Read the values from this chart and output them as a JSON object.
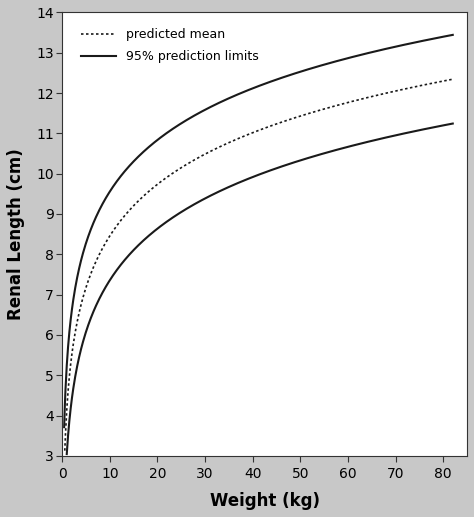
{
  "title": "",
  "xlabel": "Weight (kg)",
  "ylabel": "Renal Length (cm)",
  "xlim": [
    0,
    85
  ],
  "ylim": [
    3,
    14
  ],
  "xticks": [
    0,
    10,
    20,
    30,
    40,
    50,
    60,
    70,
    80
  ],
  "yticks": [
    3,
    4,
    5,
    6,
    7,
    8,
    9,
    10,
    11,
    12,
    13,
    14
  ],
  "bg_color": "#c8c8c8",
  "plot_bg_color": "#ffffff",
  "line_color": "#1a1a1a",
  "mean_a": 2.18,
  "mean_b": 2.15,
  "upper_a": 3.28,
  "upper_b": 2.15,
  "lower_a": 1.08,
  "lower_b": 2.15,
  "lower_x_start": 0.3,
  "legend_dotted_label": "predicted mean",
  "legend_solid_label": "95% prediction limits",
  "figsize": [
    4.74,
    5.17
  ],
  "dpi": 100
}
